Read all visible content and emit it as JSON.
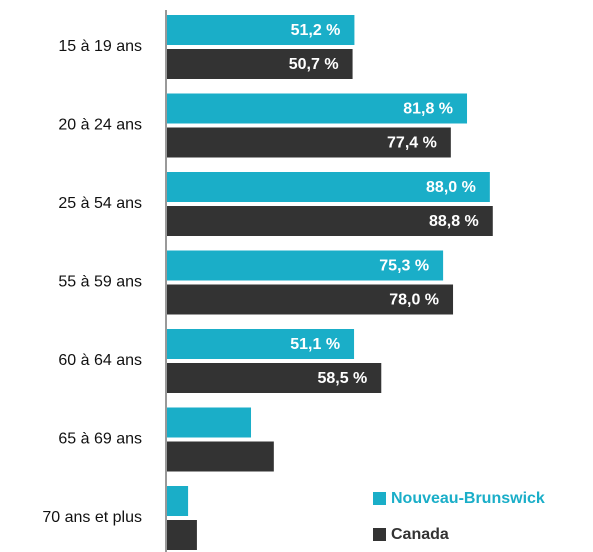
{
  "chart_data": {
    "type": "hbar",
    "categories": [
      "15 à 19 ans",
      "20 à 24 ans",
      "25 à 54 ans",
      "55 à 59 ans",
      "60 à 64 ans",
      "65 à 69 ans",
      "70 ans et plus"
    ],
    "series": [
      {
        "name": "Nouveau-Brunswick",
        "color": "#1aaec8",
        "values": [
          51.2,
          81.8,
          88.0,
          75.3,
          51.1,
          23.1,
          6.0
        ],
        "value_labels": [
          "51,2 %",
          "81,8 %",
          "88,0 %",
          "75,3 %",
          "51,1 %",
          null,
          null
        ]
      },
      {
        "name": "Canada",
        "color": "#333333",
        "values": [
          50.7,
          77.4,
          88.8,
          78.0,
          58.5,
          29.3,
          8.4
        ],
        "value_labels": [
          "50,7 %",
          "77,4 %",
          "88,8 %",
          "78,0 %",
          "58,5 %",
          null,
          null
        ]
      }
    ],
    "xlim": [
      0,
      100
    ],
    "legend": "lower right"
  }
}
